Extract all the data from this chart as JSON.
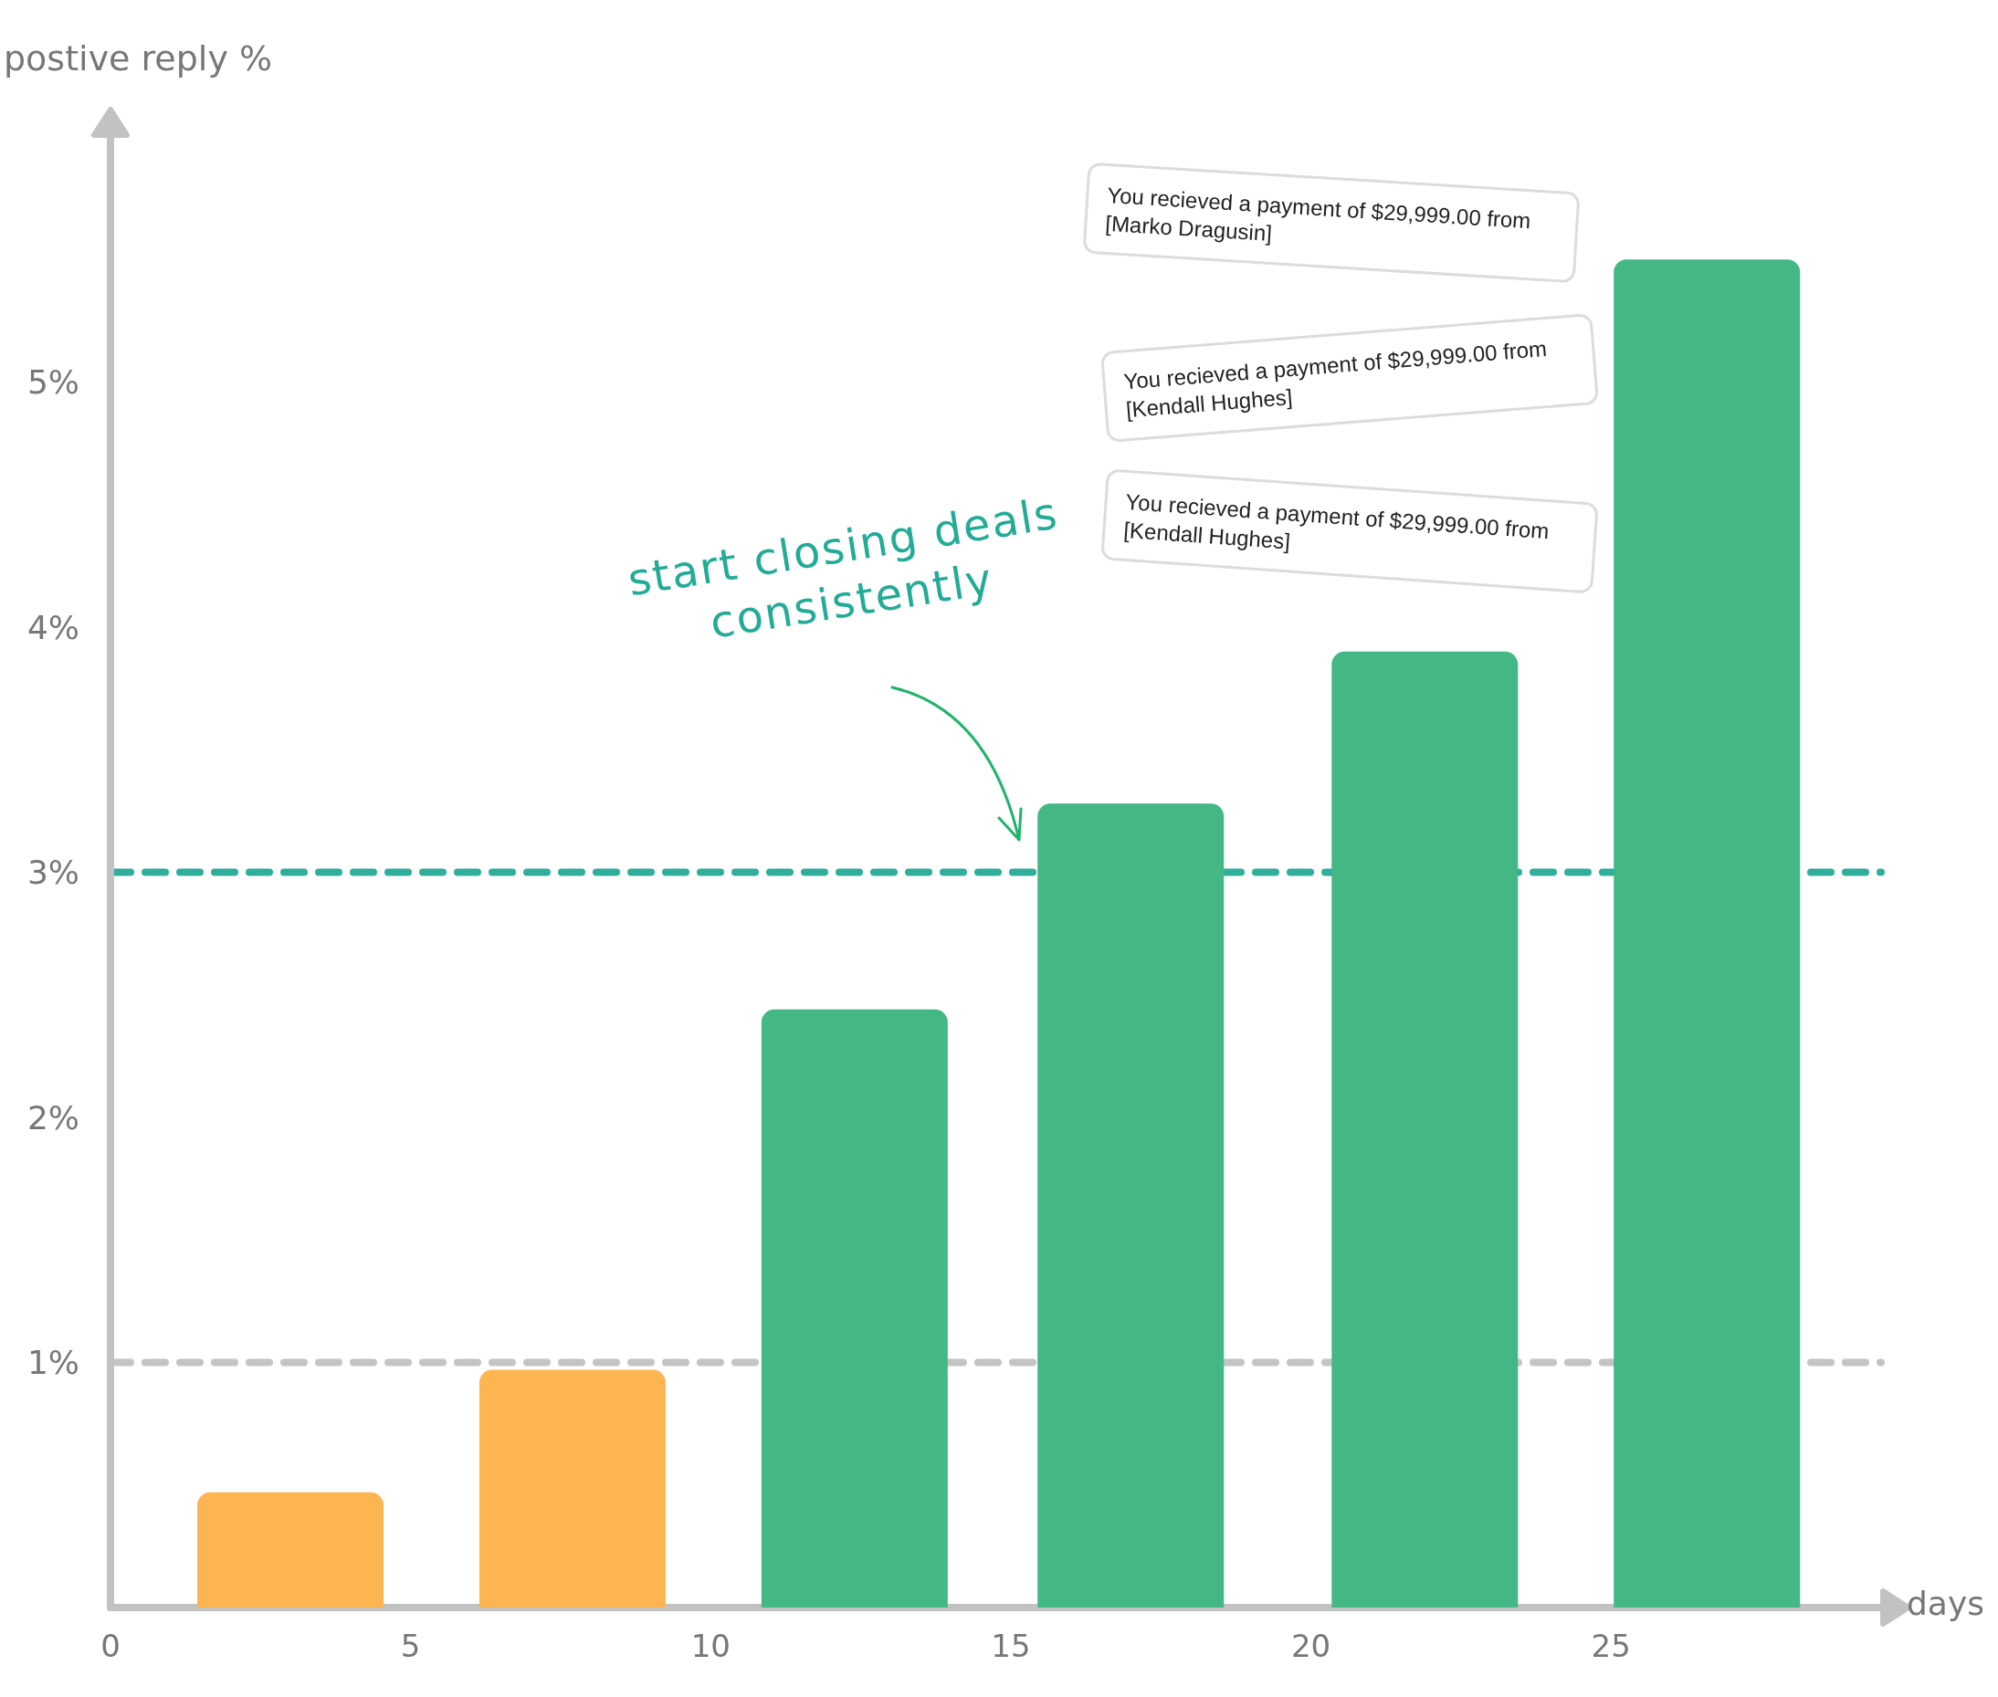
{
  "chart_data": {
    "type": "bar",
    "xlabel": "days",
    "ylabel": "postive reply %",
    "annotations": [
      "start closing deals consistently",
      "You recieved a payment of $29,999.00 from [Marko Dragusin]",
      "You recieved a payment of $29,999.00 from [Kendall Hughes]",
      "You recieved a payment of $29,999.00 from [Kendall Hughes]"
    ],
    "x": [
      3,
      7.7,
      12.4,
      17,
      21.9,
      26.6
    ],
    "values": [
      0.47,
      0.97,
      2.44,
      3.28,
      3.9,
      5.5
    ],
    "colors": [
      "#fdb552",
      "#fdb552",
      "#43b885",
      "#43b885",
      "#43b885",
      "#43b885"
    ],
    "xlim": [
      0,
      29.5
    ],
    "xticks": [
      0,
      5,
      10,
      15,
      20,
      25
    ],
    "ylim": [
      0,
      6
    ],
    "yticks": [
      {
        "value": 1,
        "label": "1%"
      },
      {
        "value": 2,
        "label": "2%"
      },
      {
        "value": 3,
        "label": "3%"
      },
      {
        "value": 4,
        "label": "4%"
      },
      {
        "value": 5,
        "label": "5%"
      }
    ],
    "ref_lines": [
      {
        "axis": "y",
        "value": 1,
        "color": "#c4c4c4",
        "line_style": "dashed"
      },
      {
        "axis": "y",
        "value": 3,
        "color": "#2fae9c",
        "line_style": "dashed"
      }
    ]
  }
}
